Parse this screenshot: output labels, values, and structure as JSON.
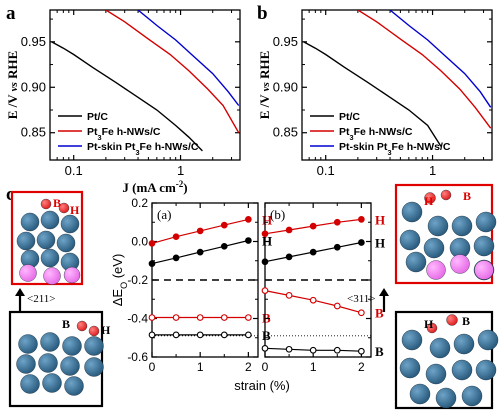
{
  "panel_labels": {
    "a": "a",
    "b": "b",
    "c": "c"
  },
  "chart_data": [
    {
      "type": "line",
      "panel": "a",
      "xscale": "log",
      "xlim": [
        0.06,
        3.6
      ],
      "ylim": [
        0.82,
        0.985
      ],
      "xlabel": "J (mA cm",
      "xlabel_sup": "-2",
      "xlabel_tail": ")",
      "ylabel": "E /V vs RHE",
      "xticks": [
        0.1,
        1
      ],
      "xtick_labels": [
        "0.1",
        "1"
      ],
      "yticks": [
        0.85,
        0.9,
        0.95
      ],
      "ytick_labels": [
        "0.85",
        "0.90",
        "0.95"
      ],
      "legend_position": "bottom-right",
      "series": [
        {
          "name": "Pt/C",
          "color": "#000000",
          "x": [
            0.062,
            0.08,
            0.1,
            0.15,
            0.25,
            0.4,
            0.6,
            0.9,
            1.2,
            1.6
          ],
          "y": [
            0.95,
            0.943,
            0.936,
            0.922,
            0.905,
            0.889,
            0.875,
            0.858,
            0.845,
            0.83
          ]
        },
        {
          "name_parts": [
            "Pt",
            "3",
            "Fe h-NWs/C"
          ],
          "color": "#d40000",
          "x": [
            0.2,
            0.3,
            0.5,
            0.8,
            1.2,
            1.8,
            2.5,
            3.5
          ],
          "y": [
            0.985,
            0.972,
            0.953,
            0.936,
            0.918,
            0.898,
            0.88,
            0.85
          ]
        },
        {
          "name_parts": [
            "Pt-skin Pt",
            "3",
            "Fe h-NWs/C"
          ],
          "color": "#0000d0",
          "x": [
            0.4,
            0.6,
            0.9,
            1.3,
            2.0,
            2.8,
            3.5
          ],
          "y": [
            0.985,
            0.968,
            0.952,
            0.935,
            0.915,
            0.895,
            0.88
          ]
        }
      ]
    },
    {
      "type": "line",
      "panel": "b",
      "xscale": "log",
      "xlim": [
        0.06,
        3.6
      ],
      "ylim": [
        0.82,
        0.985
      ],
      "ylabel": "E /V vs RHE",
      "xticks": [
        0.1,
        1
      ],
      "xtick_labels": [
        "0.1",
        "1"
      ],
      "yticks": [
        0.85,
        0.9,
        0.95
      ],
      "ytick_labels": [
        "0.85",
        "0.90",
        "0.95"
      ],
      "legend_position": "bottom-right",
      "series": [
        {
          "name": "Pt/C",
          "color": "#000000",
          "x": [
            0.062,
            0.08,
            0.1,
            0.15,
            0.25,
            0.4,
            0.6,
            0.9,
            1.2
          ],
          "y": [
            0.95,
            0.943,
            0.936,
            0.922,
            0.905,
            0.889,
            0.875,
            0.858,
            0.835
          ]
        },
        {
          "name_parts": [
            "Pt",
            "3",
            "Fe h-NWs/C"
          ],
          "color": "#d40000",
          "x": [
            0.2,
            0.3,
            0.5,
            0.8,
            1.2,
            1.8,
            2.5,
            3.5
          ],
          "y": [
            0.985,
            0.972,
            0.953,
            0.936,
            0.918,
            0.898,
            0.878,
            0.855
          ]
        },
        {
          "name_parts": [
            "Pt-skin Pt",
            "3",
            "Fe h-NWs/C"
          ],
          "color": "#0000d0",
          "x": [
            0.4,
            0.6,
            0.9,
            1.3,
            2.0,
            2.8,
            3.5
          ],
          "y": [
            0.985,
            0.968,
            0.952,
            0.935,
            0.915,
            0.895,
            0.878
          ]
        }
      ]
    },
    {
      "type": "scatter",
      "panel": "c-(a)",
      "subpanel_label": "(a)",
      "xlim": [
        0,
        2.2
      ],
      "ylim": [
        -0.6,
        0.2
      ],
      "xlabel": "strain (%)",
      "ylabel_main": "ΔE",
      "ylabel_sub": "O",
      "ylabel_tail": " (eV)",
      "xticks": [
        0,
        1,
        2
      ],
      "xtick_labels": [
        "0",
        "1",
        "2"
      ],
      "yticks": [
        0.2,
        0.0,
        -0.2,
        -0.4,
        -0.6
      ],
      "ytick_labels": [
        "0.2",
        "0.0",
        "-0.2",
        "-0.4",
        "-0.6"
      ],
      "dashed_line_y": -0.2,
      "dotted_line_y": -0.49,
      "series": [
        {
          "label": "H",
          "color": "#d40000",
          "filled": true,
          "x": [
            0,
            0.5,
            1,
            1.5,
            2
          ],
          "y": [
            -0.01,
            0.025,
            0.055,
            0.085,
            0.115
          ]
        },
        {
          "label": "H",
          "color": "#000000",
          "filled": true,
          "x": [
            0,
            0.5,
            1,
            1.5,
            2
          ],
          "y": [
            -0.115,
            -0.085,
            -0.055,
            -0.025,
            0.005
          ]
        },
        {
          "label": "B",
          "color": "#d40000",
          "filled": false,
          "x": [
            0,
            0.5,
            1,
            1.5,
            2
          ],
          "y": [
            -0.395,
            -0.395,
            -0.395,
            -0.395,
            -0.395
          ]
        },
        {
          "label": "B",
          "color": "#000000",
          "filled": false,
          "x": [
            0,
            0.5,
            1,
            1.5,
            2
          ],
          "y": [
            -0.485,
            -0.485,
            -0.485,
            -0.485,
            -0.485
          ]
        }
      ]
    },
    {
      "type": "scatter",
      "panel": "c-(b)",
      "subpanel_label": "(b)",
      "xlim": [
        0,
        2.2
      ],
      "ylim": [
        -0.6,
        0.2
      ],
      "xticks": [
        0,
        1,
        2
      ],
      "xtick_labels": [
        "0",
        "1",
        "2"
      ],
      "dashed_line_y": -0.2,
      "dotted_line_y": -0.49,
      "series": [
        {
          "label": "H",
          "color": "#d40000",
          "filled": true,
          "x": [
            0,
            0.5,
            1,
            1.5,
            2
          ],
          "y": [
            0.04,
            0.06,
            0.08,
            0.1,
            0.115
          ]
        },
        {
          "label": "H",
          "color": "#000000",
          "filled": true,
          "x": [
            0,
            0.5,
            1,
            1.5,
            2
          ],
          "y": [
            -0.105,
            -0.08,
            -0.055,
            -0.03,
            -0.005
          ]
        },
        {
          "label": "B",
          "color": "#d40000",
          "filled": false,
          "x": [
            0,
            0.5,
            1,
            1.5,
            2
          ],
          "y": [
            -0.255,
            -0.28,
            -0.305,
            -0.335,
            -0.37
          ]
        },
        {
          "label": "B",
          "color": "#000000",
          "filled": false,
          "x": [
            0,
            0.5,
            1,
            1.5,
            2
          ],
          "y": [
            -0.555,
            -0.56,
            -0.565,
            -0.565,
            -0.57
          ]
        }
      ]
    }
  ],
  "structures": {
    "miller_211": "<211>",
    "miller_311": "<311>",
    "site_b": "B",
    "site_h": "H",
    "atom_colors": {
      "pt": "#2b5d80",
      "fe": "#e86fe8",
      "o": "#e02020"
    },
    "frame_colors": {
      "red": "#e00000",
      "black": "#000000"
    }
  }
}
